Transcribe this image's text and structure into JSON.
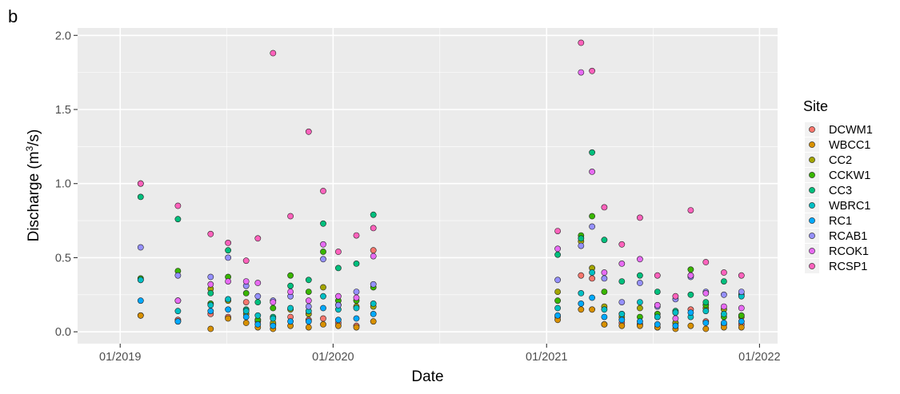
{
  "panel_label": "b",
  "chart_data": {
    "type": "scatter",
    "xlabel": "Date",
    "ylabel_prefix": "Discharge (m",
    "ylabel_sup": "3",
    "ylabel_suffix": "/s)",
    "x_ticks": [
      "01/2019",
      "01/2020",
      "01/2021",
      "01/2022"
    ],
    "y_ticks": [
      "0.0",
      "0.5",
      "1.0",
      "1.5",
      "2.0"
    ],
    "xlim": [
      "2018-10-20",
      "2022-02-01"
    ],
    "ylim": [
      -0.08,
      2.05
    ],
    "grid": true,
    "legend_title": "Site",
    "legend_position": "right",
    "series": [
      {
        "name": "DCWM1",
        "color": "#F8766D",
        "points": [
          [
            "2019-02-05",
            0.11
          ],
          [
            "2019-04-10",
            0.08
          ],
          [
            "2019-06-05",
            0.12
          ],
          [
            "2019-07-05",
            0.1
          ],
          [
            "2019-08-05",
            0.2
          ],
          [
            "2019-08-25",
            0.07
          ],
          [
            "2019-09-20",
            0.05
          ],
          [
            "2019-10-20",
            0.1
          ],
          [
            "2019-11-20",
            0.08
          ],
          [
            "2019-12-15",
            0.09
          ],
          [
            "2020-01-10",
            0.06
          ],
          [
            "2020-02-10",
            0.04
          ],
          [
            "2020-03-10",
            0.55
          ],
          [
            "2021-01-20",
            0.1
          ],
          [
            "2021-03-01",
            0.38
          ],
          [
            "2021-03-20",
            0.36
          ],
          [
            "2021-04-10",
            0.05
          ],
          [
            "2021-05-10",
            0.06
          ],
          [
            "2021-06-10",
            0.05
          ],
          [
            "2021-07-10",
            0.03
          ],
          [
            "2021-08-10",
            0.06
          ],
          [
            "2021-09-05",
            0.15
          ],
          [
            "2021-10-01",
            0.07
          ],
          [
            "2021-11-01",
            0.05
          ],
          [
            "2021-12-01",
            0.05
          ]
        ]
      },
      {
        "name": "WBCC1",
        "color": "#D89000",
        "points": [
          [
            "2019-02-05",
            0.11
          ],
          [
            "2019-04-10",
            0.07
          ],
          [
            "2019-06-05",
            0.02
          ],
          [
            "2019-07-05",
            0.09
          ],
          [
            "2019-08-05",
            0.06
          ],
          [
            "2019-08-25",
            0.03
          ],
          [
            "2019-09-20",
            0.02
          ],
          [
            "2019-10-20",
            0.04
          ],
          [
            "2019-11-20",
            0.03
          ],
          [
            "2019-12-15",
            0.05
          ],
          [
            "2020-01-10",
            0.04
          ],
          [
            "2020-02-10",
            0.03
          ],
          [
            "2020-03-10",
            0.07
          ],
          [
            "2021-01-20",
            0.08
          ],
          [
            "2021-03-01",
            0.15
          ],
          [
            "2021-03-20",
            0.15
          ],
          [
            "2021-04-10",
            0.05
          ],
          [
            "2021-05-10",
            0.04
          ],
          [
            "2021-06-10",
            0.04
          ],
          [
            "2021-07-10",
            0.03
          ],
          [
            "2021-08-10",
            0.02
          ],
          [
            "2021-09-05",
            0.04
          ],
          [
            "2021-10-01",
            0.02
          ],
          [
            "2021-11-01",
            0.03
          ],
          [
            "2021-12-01",
            0.03
          ]
        ]
      },
      {
        "name": "CC2",
        "color": "#A3A500",
        "points": [
          [
            "2019-02-05",
            0.35
          ],
          [
            "2019-04-10",
            0.21
          ],
          [
            "2019-06-05",
            0.29
          ],
          [
            "2019-07-05",
            0.21
          ],
          [
            "2019-08-05",
            0.12
          ],
          [
            "2019-08-25",
            0.08
          ],
          [
            "2019-09-20",
            0.06
          ],
          [
            "2019-10-20",
            0.15
          ],
          [
            "2019-11-20",
            0.12
          ],
          [
            "2019-12-15",
            0.3
          ],
          [
            "2020-01-10",
            0.18
          ],
          [
            "2020-02-10",
            0.17
          ],
          [
            "2020-03-10",
            0.17
          ],
          [
            "2021-01-20",
            0.27
          ],
          [
            "2021-03-01",
            0.61
          ],
          [
            "2021-03-20",
            0.43
          ],
          [
            "2021-04-10",
            0.17
          ],
          [
            "2021-05-10",
            0.1
          ],
          [
            "2021-06-10",
            0.16
          ],
          [
            "2021-07-10",
            0.1
          ],
          [
            "2021-08-10",
            0.06
          ],
          [
            "2021-09-05",
            0.38
          ],
          [
            "2021-10-01",
            0.16
          ],
          [
            "2021-11-01",
            0.15
          ],
          [
            "2021-12-01",
            0.1
          ]
        ]
      },
      {
        "name": "CCKW1",
        "color": "#39B600",
        "points": [
          [
            "2019-02-05",
            0.36
          ],
          [
            "2019-04-10",
            0.41
          ],
          [
            "2019-06-05",
            0.19
          ],
          [
            "2019-07-05",
            0.37
          ],
          [
            "2019-08-05",
            0.26
          ],
          [
            "2019-08-25",
            0.08
          ],
          [
            "2019-09-20",
            0.16
          ],
          [
            "2019-10-20",
            0.38
          ],
          [
            "2019-11-20",
            0.27
          ],
          [
            "2019-12-15",
            0.54
          ],
          [
            "2020-01-10",
            0.21
          ],
          [
            "2020-02-10",
            0.21
          ],
          [
            "2020-03-10",
            0.3
          ],
          [
            "2021-01-20",
            0.21
          ],
          [
            "2021-03-01",
            0.65
          ],
          [
            "2021-03-20",
            0.78
          ],
          [
            "2021-04-10",
            0.27
          ],
          [
            "2021-05-10",
            0.12
          ],
          [
            "2021-06-10",
            0.1
          ],
          [
            "2021-07-10",
            0.12
          ],
          [
            "2021-08-10",
            0.13
          ],
          [
            "2021-09-05",
            0.42
          ],
          [
            "2021-10-01",
            0.18
          ],
          [
            "2021-11-01",
            0.1
          ],
          [
            "2021-12-01",
            0.11
          ]
        ]
      },
      {
        "name": "CC3",
        "color": "#00BF7D",
        "points": [
          [
            "2019-02-05",
            0.91
          ],
          [
            "2019-04-10",
            0.76
          ],
          [
            "2019-06-05",
            0.26
          ],
          [
            "2019-07-05",
            0.55
          ],
          [
            "2019-08-05",
            0.15
          ],
          [
            "2019-08-25",
            0.2
          ],
          [
            "2019-09-20",
            0.1
          ],
          [
            "2019-10-20",
            0.31
          ],
          [
            "2019-11-20",
            0.35
          ],
          [
            "2019-12-15",
            0.73
          ],
          [
            "2020-01-10",
            0.43
          ],
          [
            "2020-02-10",
            0.46
          ],
          [
            "2020-03-10",
            0.79
          ],
          [
            "2021-01-20",
            0.52
          ],
          [
            "2021-03-01",
            0.63
          ],
          [
            "2021-03-20",
            1.21
          ],
          [
            "2021-04-10",
            0.62
          ],
          [
            "2021-05-10",
            0.34
          ],
          [
            "2021-06-10",
            0.38
          ],
          [
            "2021-07-10",
            0.27
          ],
          [
            "2021-08-10",
            0.14
          ],
          [
            "2021-09-05",
            0.25
          ],
          [
            "2021-10-01",
            0.2
          ],
          [
            "2021-11-01",
            0.34
          ],
          [
            "2021-12-01",
            0.25
          ]
        ]
      },
      {
        "name": "WBRC1",
        "color": "#00BFC4",
        "points": [
          [
            "2019-02-05",
            0.35
          ],
          [
            "2019-04-10",
            0.14
          ],
          [
            "2019-06-05",
            0.18
          ],
          [
            "2019-07-05",
            0.22
          ],
          [
            "2019-08-05",
            0.14
          ],
          [
            "2019-08-25",
            0.11
          ],
          [
            "2019-09-20",
            0.09
          ],
          [
            "2019-10-20",
            0.16
          ],
          [
            "2019-11-20",
            0.14
          ],
          [
            "2019-12-15",
            0.24
          ],
          [
            "2020-01-10",
            0.15
          ],
          [
            "2020-02-10",
            0.16
          ],
          [
            "2020-03-10",
            0.19
          ],
          [
            "2021-01-20",
            0.16
          ],
          [
            "2021-03-01",
            0.26
          ],
          [
            "2021-03-20",
            0.4
          ],
          [
            "2021-04-10",
            0.15
          ],
          [
            "2021-05-10",
            0.12
          ],
          [
            "2021-06-10",
            0.2
          ],
          [
            "2021-07-10",
            0.1
          ],
          [
            "2021-08-10",
            0.13
          ],
          [
            "2021-09-05",
            0.1
          ],
          [
            "2021-10-01",
            0.14
          ],
          [
            "2021-11-01",
            0.12
          ],
          [
            "2021-12-01",
            0.24
          ]
        ]
      },
      {
        "name": "RC1",
        "color": "#00A9FF",
        "points": [
          [
            "2019-02-05",
            0.21
          ],
          [
            "2019-04-10",
            0.07
          ],
          [
            "2019-06-05",
            0.14
          ],
          [
            "2019-07-05",
            0.15
          ],
          [
            "2019-08-05",
            0.1
          ],
          [
            "2019-08-25",
            0.05
          ],
          [
            "2019-09-20",
            0.04
          ],
          [
            "2019-10-20",
            0.07
          ],
          [
            "2019-11-20",
            0.07
          ],
          [
            "2019-12-15",
            0.16
          ],
          [
            "2020-01-10",
            0.08
          ],
          [
            "2020-02-10",
            0.09
          ],
          [
            "2020-03-10",
            0.12
          ],
          [
            "2021-01-20",
            0.11
          ],
          [
            "2021-03-01",
            0.19
          ],
          [
            "2021-03-20",
            0.23
          ],
          [
            "2021-04-10",
            0.1
          ],
          [
            "2021-05-10",
            0.08
          ],
          [
            "2021-06-10",
            0.07
          ],
          [
            "2021-07-10",
            0.05
          ],
          [
            "2021-08-10",
            0.04
          ],
          [
            "2021-09-05",
            0.13
          ],
          [
            "2021-10-01",
            0.06
          ],
          [
            "2021-11-01",
            0.06
          ],
          [
            "2021-12-01",
            0.07
          ]
        ]
      },
      {
        "name": "RCAB1",
        "color": "#9590FF",
        "points": [
          [
            "2019-02-05",
            0.57
          ],
          [
            "2019-04-10",
            0.38
          ],
          [
            "2019-06-05",
            0.37
          ],
          [
            "2019-07-05",
            0.5
          ],
          [
            "2019-08-05",
            0.31
          ],
          [
            "2019-08-25",
            0.24
          ],
          [
            "2019-09-20",
            0.21
          ],
          [
            "2019-10-20",
            0.24
          ],
          [
            "2019-11-20",
            0.17
          ],
          [
            "2019-12-15",
            0.49
          ],
          [
            "2020-01-10",
            0.18
          ],
          [
            "2020-02-10",
            0.27
          ],
          [
            "2020-03-10",
            0.32
          ],
          [
            "2021-01-20",
            0.35
          ],
          [
            "2021-03-01",
            0.58
          ],
          [
            "2021-03-20",
            0.71
          ],
          [
            "2021-04-10",
            0.36
          ],
          [
            "2021-05-10",
            0.2
          ],
          [
            "2021-06-10",
            0.33
          ],
          [
            "2021-07-10",
            0.17
          ],
          [
            "2021-08-10",
            0.22
          ],
          [
            "2021-09-05",
            0.37
          ],
          [
            "2021-10-01",
            0.27
          ],
          [
            "2021-11-01",
            0.25
          ],
          [
            "2021-12-01",
            0.27
          ]
        ]
      },
      {
        "name": "RCOK1",
        "color": "#E76BF3",
        "points": [
          [
            "2019-02-05",
            1.0
          ],
          [
            "2019-04-10",
            0.21
          ],
          [
            "2019-06-05",
            0.32
          ],
          [
            "2019-07-05",
            0.34
          ],
          [
            "2019-08-05",
            0.34
          ],
          [
            "2019-08-25",
            0.33
          ],
          [
            "2019-09-20",
            0.2
          ],
          [
            "2019-10-20",
            0.27
          ],
          [
            "2019-11-20",
            0.21
          ],
          [
            "2019-12-15",
            0.59
          ],
          [
            "2020-01-10",
            0.24
          ],
          [
            "2020-02-10",
            0.23
          ],
          [
            "2020-03-10",
            0.51
          ],
          [
            "2021-01-20",
            0.56
          ],
          [
            "2021-03-01",
            1.75
          ],
          [
            "2021-03-20",
            1.08
          ],
          [
            "2021-04-10",
            0.4
          ],
          [
            "2021-05-10",
            0.46
          ],
          [
            "2021-06-10",
            0.49
          ],
          [
            "2021-07-10",
            0.18
          ],
          [
            "2021-08-10",
            0.09
          ],
          [
            "2021-09-05",
            0.38
          ],
          [
            "2021-10-01",
            0.26
          ],
          [
            "2021-11-01",
            0.17
          ],
          [
            "2021-12-01",
            0.16
          ]
        ]
      },
      {
        "name": "RCSP1",
        "color": "#FF62BC",
        "points": [
          [
            "2019-02-05",
            1.0
          ],
          [
            "2019-04-10",
            0.85
          ],
          [
            "2019-06-05",
            0.66
          ],
          [
            "2019-07-05",
            0.6
          ],
          [
            "2019-08-05",
            0.48
          ],
          [
            "2019-08-25",
            0.63
          ],
          [
            "2019-09-20",
            1.88
          ],
          [
            "2019-10-20",
            0.78
          ],
          [
            "2019-11-20",
            1.35
          ],
          [
            "2019-12-15",
            0.95
          ],
          [
            "2020-01-10",
            0.54
          ],
          [
            "2020-02-10",
            0.65
          ],
          [
            "2020-03-10",
            0.7
          ],
          [
            "2021-01-20",
            0.68
          ],
          [
            "2021-03-01",
            1.95
          ],
          [
            "2021-03-20",
            1.76
          ],
          [
            "2021-04-10",
            0.84
          ],
          [
            "2021-05-10",
            0.59
          ],
          [
            "2021-06-10",
            0.77
          ],
          [
            "2021-07-10",
            0.38
          ],
          [
            "2021-08-10",
            0.24
          ],
          [
            "2021-09-05",
            0.82
          ],
          [
            "2021-10-01",
            0.47
          ],
          [
            "2021-11-01",
            0.4
          ],
          [
            "2021-12-01",
            0.38
          ]
        ]
      }
    ]
  }
}
